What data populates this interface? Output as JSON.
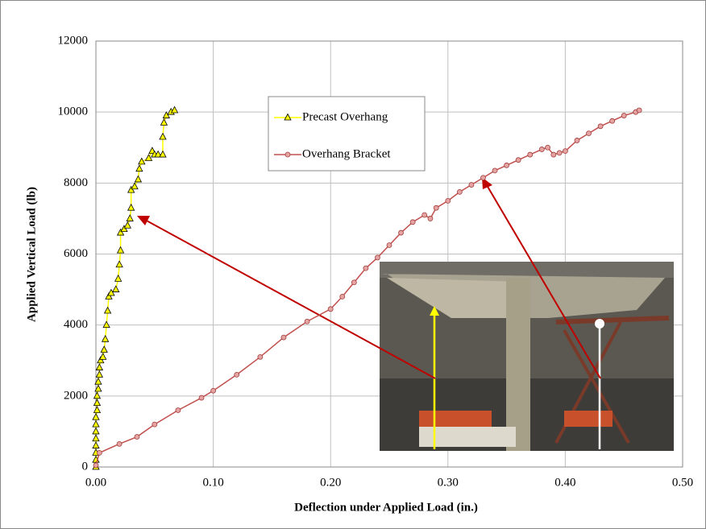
{
  "chart_data": {
    "type": "line",
    "x_label": "Deflection under Applied Load (in.)",
    "y_label": "Applied Vertical Load (lb)",
    "xlim": [
      0,
      0.5
    ],
    "xticks": [
      {
        "value": 0,
        "label": "0.00"
      },
      {
        "value": 0.1,
        "label": "0.10"
      },
      {
        "value": 0.2,
        "label": "0.20"
      },
      {
        "value": 0.3,
        "label": "0.30"
      },
      {
        "value": 0.4,
        "label": "0.40"
      },
      {
        "value": 0.5,
        "label": "0.50"
      }
    ],
    "ylim": [
      0,
      12000
    ],
    "yticks": [
      0,
      2000,
      4000,
      6000,
      8000,
      10000,
      12000
    ],
    "grid": true,
    "series": [
      {
        "name": "Precast Overhang",
        "color": "#ffff00",
        "line_color": "#ffff00",
        "marker": "triangle",
        "x": [
          0,
          0,
          0,
          0,
          0,
          0,
          0,
          0,
          0.001,
          0.001,
          0.001,
          0.002,
          0.002,
          0.003,
          0.003,
          0.004,
          0.006,
          0.007,
          0.008,
          0.009,
          0.01,
          0.011,
          0.013,
          0.017,
          0.019,
          0.02,
          0.021,
          0.021,
          0.024,
          0.027,
          0.029,
          0.03,
          0.03,
          0.033,
          0.036,
          0.037,
          0.039,
          0.045,
          0.048,
          0.05,
          0.053,
          0.057,
          0.057,
          0.058,
          0.06,
          0.064,
          0.067
        ],
        "values": [
          0,
          200,
          400,
          600,
          800,
          1000,
          1200,
          1400,
          1600,
          1800,
          2000,
          2200,
          2400,
          2600,
          2800,
          3000,
          3100,
          3300,
          3600,
          4000,
          4400,
          4800,
          4900,
          5000,
          5300,
          5700,
          6100,
          6600,
          6700,
          6800,
          7000,
          7300,
          7800,
          7900,
          8100,
          8400,
          8600,
          8700,
          8900,
          8800,
          8800,
          8800,
          9300,
          9700,
          9900,
          10000,
          10050
        ]
      },
      {
        "name": "Overhang Bracket",
        "color": "#e6a3a3",
        "line_color": "#c0504d",
        "marker": "circle",
        "x": [
          0,
          0.003,
          0.02,
          0.035,
          0.05,
          0.07,
          0.09,
          0.1,
          0.12,
          0.14,
          0.16,
          0.18,
          0.2,
          0.21,
          0.22,
          0.23,
          0.24,
          0.25,
          0.26,
          0.27,
          0.28,
          0.285,
          0.29,
          0.3,
          0.31,
          0.32,
          0.33,
          0.34,
          0.35,
          0.36,
          0.37,
          0.38,
          0.385,
          0.39,
          0.395,
          0.4,
          0.41,
          0.42,
          0.43,
          0.44,
          0.45,
          0.46,
          0.463
        ],
        "values": [
          50,
          400,
          650,
          850,
          1200,
          1600,
          1950,
          2150,
          2600,
          3100,
          3650,
          4100,
          4450,
          4800,
          5200,
          5600,
          5900,
          6250,
          6600,
          6900,
          7100,
          7000,
          7300,
          7500,
          7750,
          7950,
          8150,
          8350,
          8500,
          8650,
          8800,
          8950,
          9000,
          8800,
          8850,
          8900,
          9200,
          9400,
          9600,
          9750,
          9900,
          10000,
          10050
        ]
      }
    ]
  }
}
